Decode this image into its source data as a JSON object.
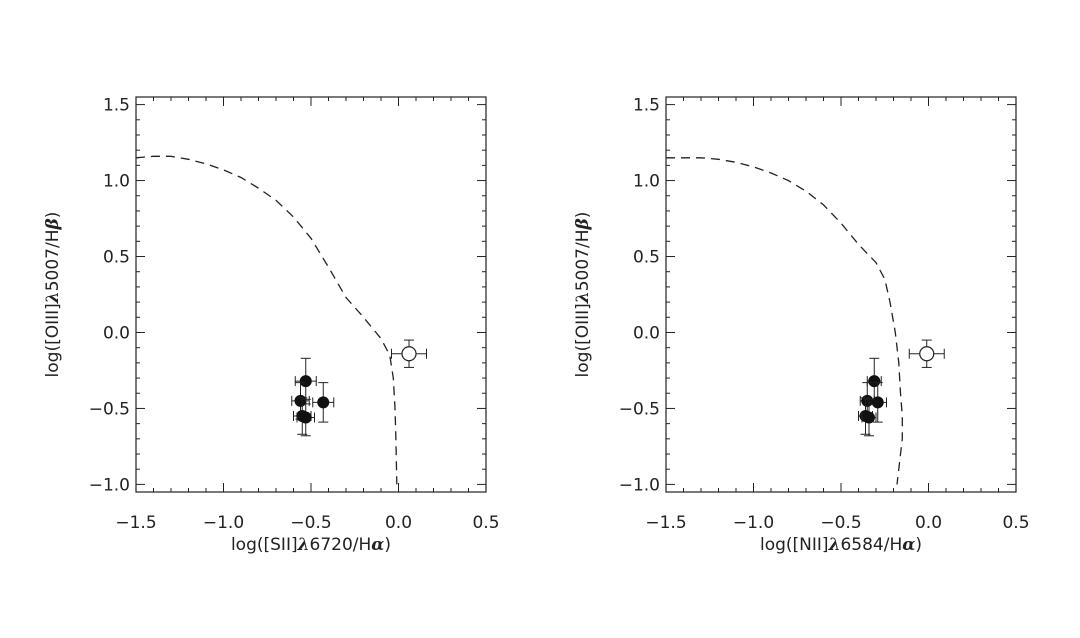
{
  "chart_data": [
    {
      "type": "scatter",
      "xlabel": "log([SII]λ6720/Hα)",
      "ylabel": "log([OIII]λ5007/Hβ)",
      "xlim": [
        -1.5,
        0.5
      ],
      "ylim": [
        -1.05,
        1.55
      ],
      "xticks": [
        "−1.5",
        "−1.0",
        "−0.5",
        "0.0",
        "0.5"
      ],
      "xtick_values": [
        -1.5,
        -1.0,
        -0.5,
        0.0,
        0.5
      ],
      "yticks": [
        "1.5",
        "1.0",
        "0.5",
        "0.0",
        "−0.5",
        "−1.0"
      ],
      "ytick_values": [
        1.5,
        1.0,
        0.5,
        0.0,
        -0.5,
        -1.0
      ],
      "grid": false,
      "series": [
        {
          "marker": "filled-circle",
          "points": [
            {
              "x": -0.53,
              "y": -0.32,
              "xerr": 0.06,
              "yerr": 0.15
            },
            {
              "x": -0.56,
              "y": -0.45,
              "xerr": 0.05,
              "yerr": 0.12
            },
            {
              "x": -0.43,
              "y": -0.46,
              "xerr": 0.06,
              "yerr": 0.13
            },
            {
              "x": -0.55,
              "y": -0.55,
              "xerr": 0.05,
              "yerr": 0.12
            },
            {
              "x": -0.53,
              "y": -0.56,
              "xerr": 0.05,
              "yerr": 0.12
            }
          ]
        },
        {
          "marker": "open-circle",
          "points": [
            {
              "x": 0.06,
              "y": -0.14,
              "xerr": 0.1,
              "yerr": 0.09
            }
          ]
        }
      ],
      "curve": {
        "style": "dashed",
        "points": [
          [
            -1.5,
            1.15
          ],
          [
            -1.4,
            1.16
          ],
          [
            -1.3,
            1.16
          ],
          [
            -1.2,
            1.14
          ],
          [
            -1.1,
            1.11
          ],
          [
            -1.0,
            1.07
          ],
          [
            -0.9,
            1.02
          ],
          [
            -0.8,
            0.95
          ],
          [
            -0.7,
            0.87
          ],
          [
            -0.6,
            0.76
          ],
          [
            -0.5,
            0.62
          ],
          [
            -0.4,
            0.43
          ],
          [
            -0.3,
            0.23
          ],
          [
            -0.2,
            0.1
          ],
          [
            -0.1,
            -0.04
          ],
          [
            -0.05,
            -0.15
          ],
          [
            -0.03,
            -0.3
          ],
          [
            -0.02,
            -0.5
          ],
          [
            -0.015,
            -0.7
          ],
          [
            -0.01,
            -1.0
          ]
        ]
      }
    },
    {
      "type": "scatter",
      "xlabel": "log([NII]λ6584/Hα)",
      "ylabel": "log([OIII]λ5007/Hβ)",
      "xlim": [
        -1.5,
        0.5
      ],
      "ylim": [
        -1.05,
        1.55
      ],
      "xticks": [
        "−1.5",
        "−1.0",
        "−0.5",
        "0.0",
        "0.5"
      ],
      "xtick_values": [
        -1.5,
        -1.0,
        -0.5,
        0.0,
        0.5
      ],
      "yticks": [
        "1.5",
        "1.0",
        "0.5",
        "0.0",
        "−0.5",
        "−1.0"
      ],
      "ytick_values": [
        1.5,
        1.0,
        0.5,
        0.0,
        -0.5,
        -1.0
      ],
      "grid": false,
      "series": [
        {
          "marker": "filled-circle",
          "points": [
            {
              "x": -0.31,
              "y": -0.32,
              "xerr": 0.04,
              "yerr": 0.15
            },
            {
              "x": -0.35,
              "y": -0.45,
              "xerr": 0.04,
              "yerr": 0.12
            },
            {
              "x": -0.29,
              "y": -0.46,
              "xerr": 0.05,
              "yerr": 0.13
            },
            {
              "x": -0.36,
              "y": -0.55,
              "xerr": 0.04,
              "yerr": 0.12
            },
            {
              "x": -0.34,
              "y": -0.56,
              "xerr": 0.04,
              "yerr": 0.12
            }
          ]
        },
        {
          "marker": "open-circle",
          "points": [
            {
              "x": -0.01,
              "y": -0.14,
              "xerr": 0.1,
              "yerr": 0.09
            }
          ]
        }
      ],
      "curve": {
        "style": "dashed",
        "points": [
          [
            -1.5,
            1.15
          ],
          [
            -1.4,
            1.15
          ],
          [
            -1.3,
            1.15
          ],
          [
            -1.2,
            1.14
          ],
          [
            -1.1,
            1.12
          ],
          [
            -1.0,
            1.09
          ],
          [
            -0.9,
            1.05
          ],
          [
            -0.8,
            1.0
          ],
          [
            -0.7,
            0.93
          ],
          [
            -0.6,
            0.84
          ],
          [
            -0.5,
            0.72
          ],
          [
            -0.4,
            0.58
          ],
          [
            -0.3,
            0.46
          ],
          [
            -0.25,
            0.35
          ],
          [
            -0.22,
            0.2
          ],
          [
            -0.19,
            0.0
          ],
          [
            -0.17,
            -0.2
          ],
          [
            -0.16,
            -0.4
          ],
          [
            -0.15,
            -0.55
          ],
          [
            -0.15,
            -0.7
          ],
          [
            -0.18,
            -1.0
          ]
        ]
      }
    }
  ]
}
